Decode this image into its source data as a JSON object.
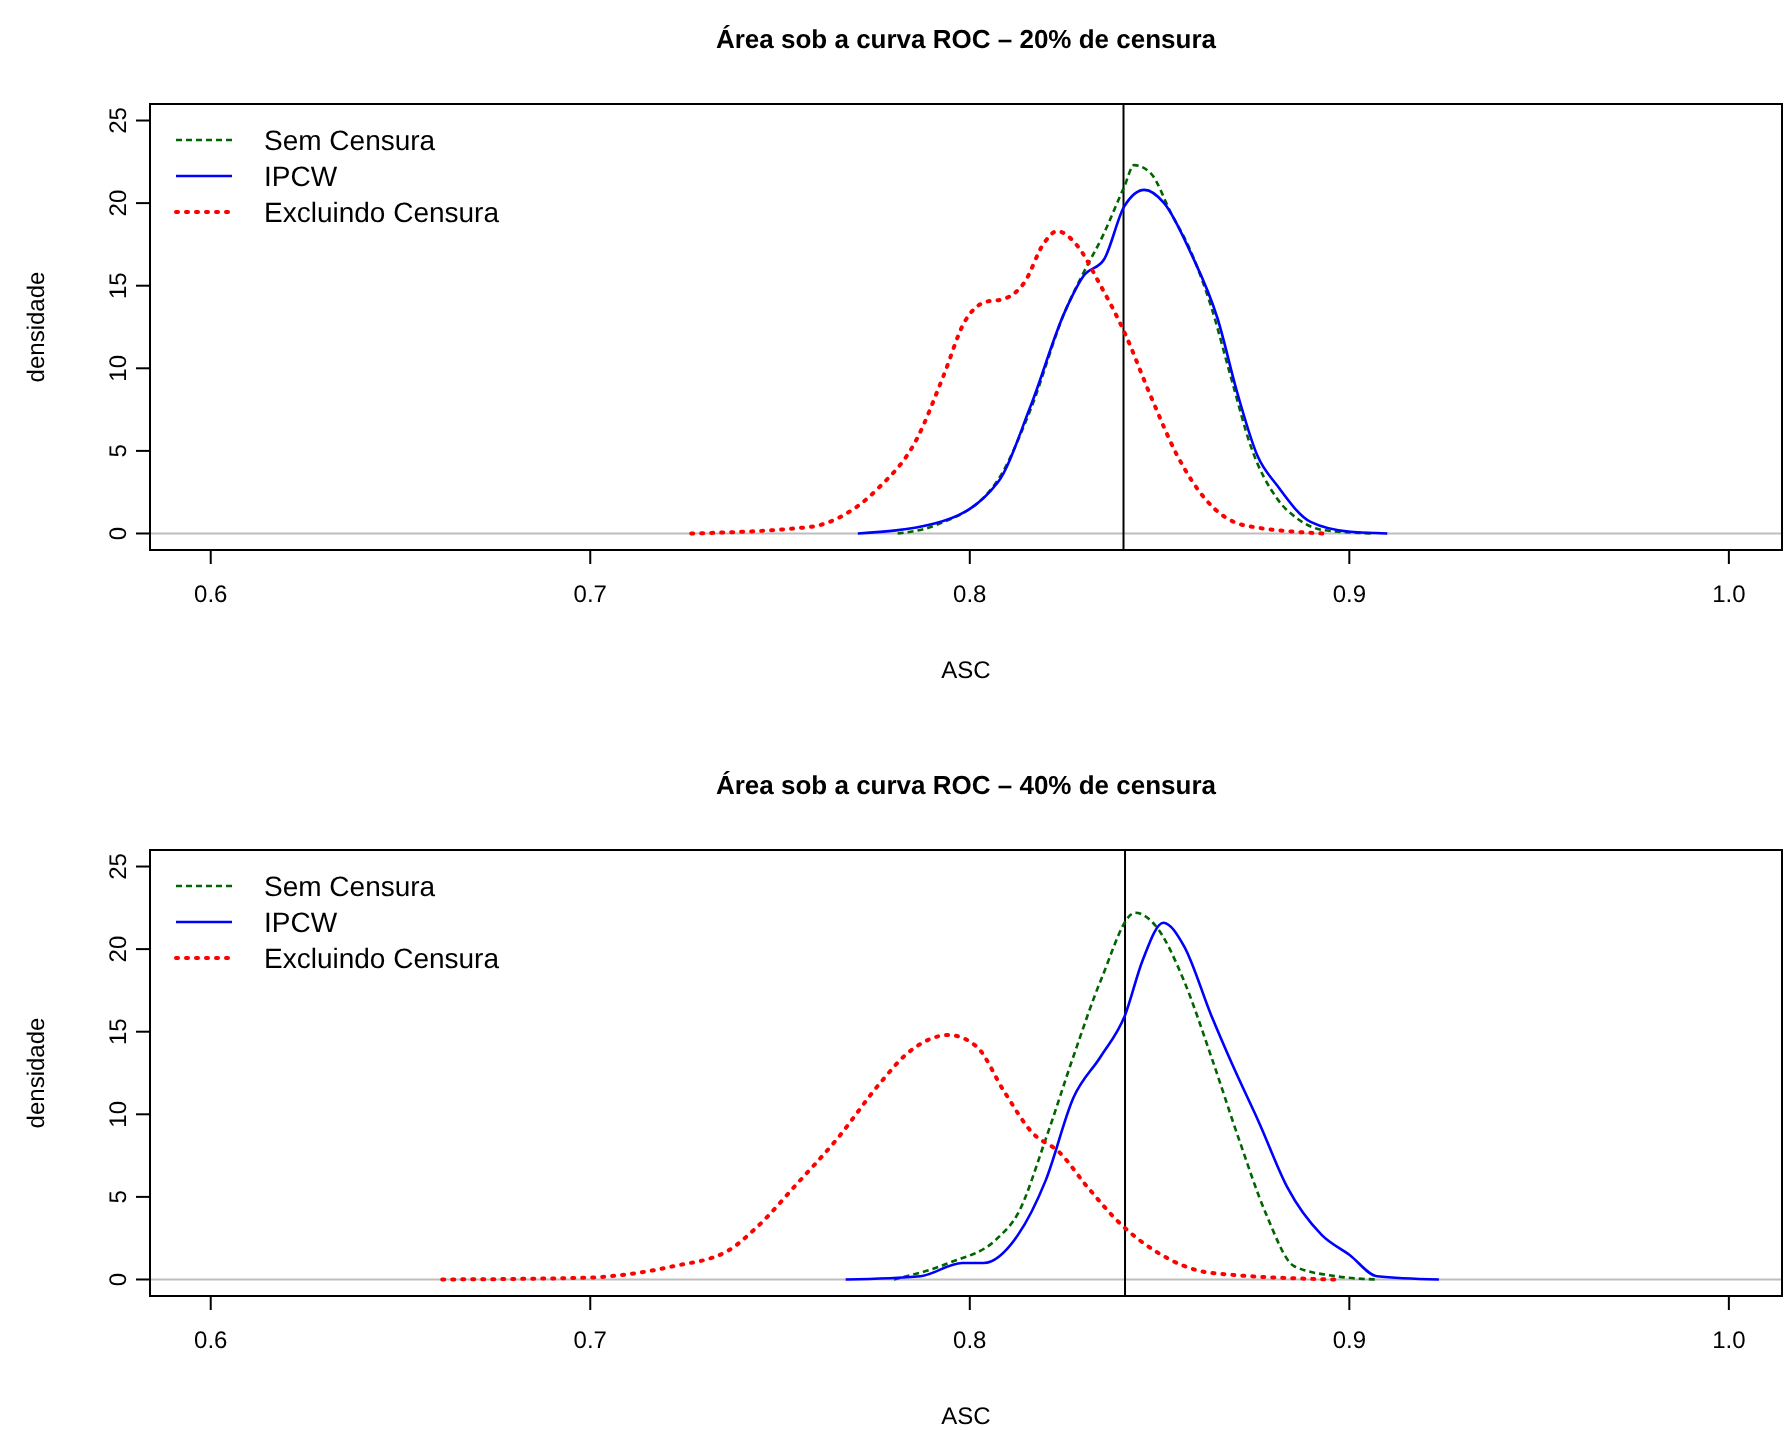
{
  "chart_data": [
    {
      "type": "line",
      "title": "Área sob a curva ROC – 20% de censura",
      "xlabel": "ASC",
      "ylabel": "densidade",
      "xlim": [
        0.584,
        1.014
      ],
      "xticks": [
        0.6,
        0.7,
        0.8,
        0.9,
        {
          "value": 1,
          "label": "1.0"
        }
      ],
      "ylim": [
        -1,
        26
      ],
      "yticks": [
        0,
        5,
        10,
        15,
        20,
        25
      ],
      "legend": "top left",
      "ref_lines": [
        {
          "axis": "y",
          "value": 0,
          "color": "#bebebe",
          "line_style": "solid"
        },
        {
          "axis": "x",
          "value": 0.8405,
          "color": "#000000",
          "line_style": "solid"
        }
      ],
      "series": [
        {
          "name": "Sem Censura",
          "color": "#006400",
          "line_style": "dashed",
          "x": [
            0.781,
            0.791,
            0.807,
            0.816,
            0.825,
            0.83,
            0.835,
            0.8407,
            0.8433,
            0.8477,
            0.853,
            0.858,
            0.8635,
            0.869,
            0.874,
            0.881,
            0.8863,
            0.8933,
            0.9065
          ],
          "values": [
            0,
            0.5,
            3.1,
            7.5,
            13.4,
            15.8,
            18,
            21,
            22.3,
            21.8,
            19.4,
            17.2,
            13.8,
            9.3,
            5.3,
            2.1,
            0.9,
            0.2,
            0
          ]
        },
        {
          "name": "IPCW",
          "color": "#0000ff",
          "line_style": "solid",
          "x": [
            0.7705,
            0.7907,
            0.8074,
            0.816,
            0.825,
            0.83,
            0.8354,
            0.8407,
            0.846,
            0.8512,
            0.8582,
            0.8653,
            0.8705,
            0.8758,
            0.881,
            0.8898,
            0.9003,
            0.91
          ],
          "values": [
            0,
            0.6,
            3.1,
            7.7,
            13.4,
            15.6,
            16.6,
            19.8,
            20.8,
            20,
            17,
            13,
            8.5,
            4.7,
            2.9,
            0.7,
            0.1,
            0
          ]
        },
        {
          "name": "Excluindo Censura",
          "color": "#ff0000",
          "line_style": "dotted",
          "x": [
            0.7266,
            0.758,
            0.765,
            0.7757,
            0.786,
            0.793,
            0.7986,
            0.8039,
            0.809,
            0.8144,
            0.8196,
            0.823,
            0.8284,
            0.834,
            0.8407,
            0.8477,
            0.8547,
            0.862,
            0.8723,
            0.8933
          ],
          "values": [
            0,
            0.4,
            0.9,
            2.7,
            5.7,
            9.5,
            12.8,
            14,
            14.2,
            15.2,
            17.6,
            18.3,
            17.4,
            15.2,
            12.2,
            8.3,
            4.7,
            2.1,
            0.5,
            0
          ]
        }
      ]
    },
    {
      "type": "line",
      "title": "Área sob a curva ROC – 40% de censura",
      "xlabel": "ASC",
      "ylabel": "densidade",
      "xlim": [
        0.584,
        1.014
      ],
      "xticks": [
        0.6,
        0.7,
        0.8,
        0.9,
        {
          "value": 1,
          "label": "1.0"
        }
      ],
      "ylim": [
        -1,
        26
      ],
      "yticks": [
        0,
        5,
        10,
        15,
        20,
        25
      ],
      "legend": "top left",
      "ref_lines": [
        {
          "axis": "y",
          "value": 0,
          "color": "#bebebe",
          "line_style": "solid"
        },
        {
          "axis": "x",
          "value": 0.8409,
          "color": "#000000",
          "line_style": "solid"
        }
      ],
      "series": [
        {
          "name": "Sem Censura",
          "color": "#006400",
          "line_style": "dashed",
          "x": [
            0.78,
            0.7945,
            0.8073,
            0.8127,
            0.82,
            0.8273,
            0.8345,
            0.8436,
            0.849,
            0.8564,
            0.8636,
            0.8709,
            0.878,
            0.8855,
            0.8964,
            0.9073
          ],
          "values": [
            0,
            1,
            2.5,
            4,
            8.5,
            13.5,
            18.1,
            22.2,
            21.4,
            18.1,
            13.5,
            8.5,
            4,
            0.8,
            0.2,
            0
          ]
        },
        {
          "name": "IPCW",
          "color": "#0000ff",
          "line_style": "solid",
          "x": [
            0.7673,
            0.787,
            0.798,
            0.8036,
            0.8127,
            0.82,
            0.8273,
            0.8345,
            0.8409,
            0.8455,
            0.851,
            0.8564,
            0.8636,
            0.869,
            0.8764,
            0.8836,
            0.8927,
            0.9,
            0.9073,
            0.9236
          ],
          "values": [
            0,
            0.2,
            1,
            1,
            2.7,
            6,
            11,
            13.5,
            16,
            19.3,
            21.6,
            20.2,
            16,
            13.1,
            9.4,
            5.6,
            2.7,
            1.5,
            0.2,
            0
          ]
        },
        {
          "name": "Excluindo Censura",
          "color": "#ff0000",
          "line_style": "dotted",
          "x": [
            0.661,
            0.698,
            0.7218,
            0.736,
            0.7436,
            0.7545,
            0.765,
            0.7764,
            0.7836,
            0.7945,
            0.8018,
            0.809,
            0.8164,
            0.8236,
            0.831,
            0.84,
            0.849,
            0.8636,
            0.896
          ],
          "values": [
            0,
            0.1,
            0.8,
            1.7,
            3.1,
            5.8,
            8.5,
            11.9,
            13.7,
            14.8,
            14.1,
            11.4,
            8.9,
            7.7,
            5.6,
            3.3,
            1.7,
            0.4,
            0
          ]
        }
      ]
    }
  ]
}
